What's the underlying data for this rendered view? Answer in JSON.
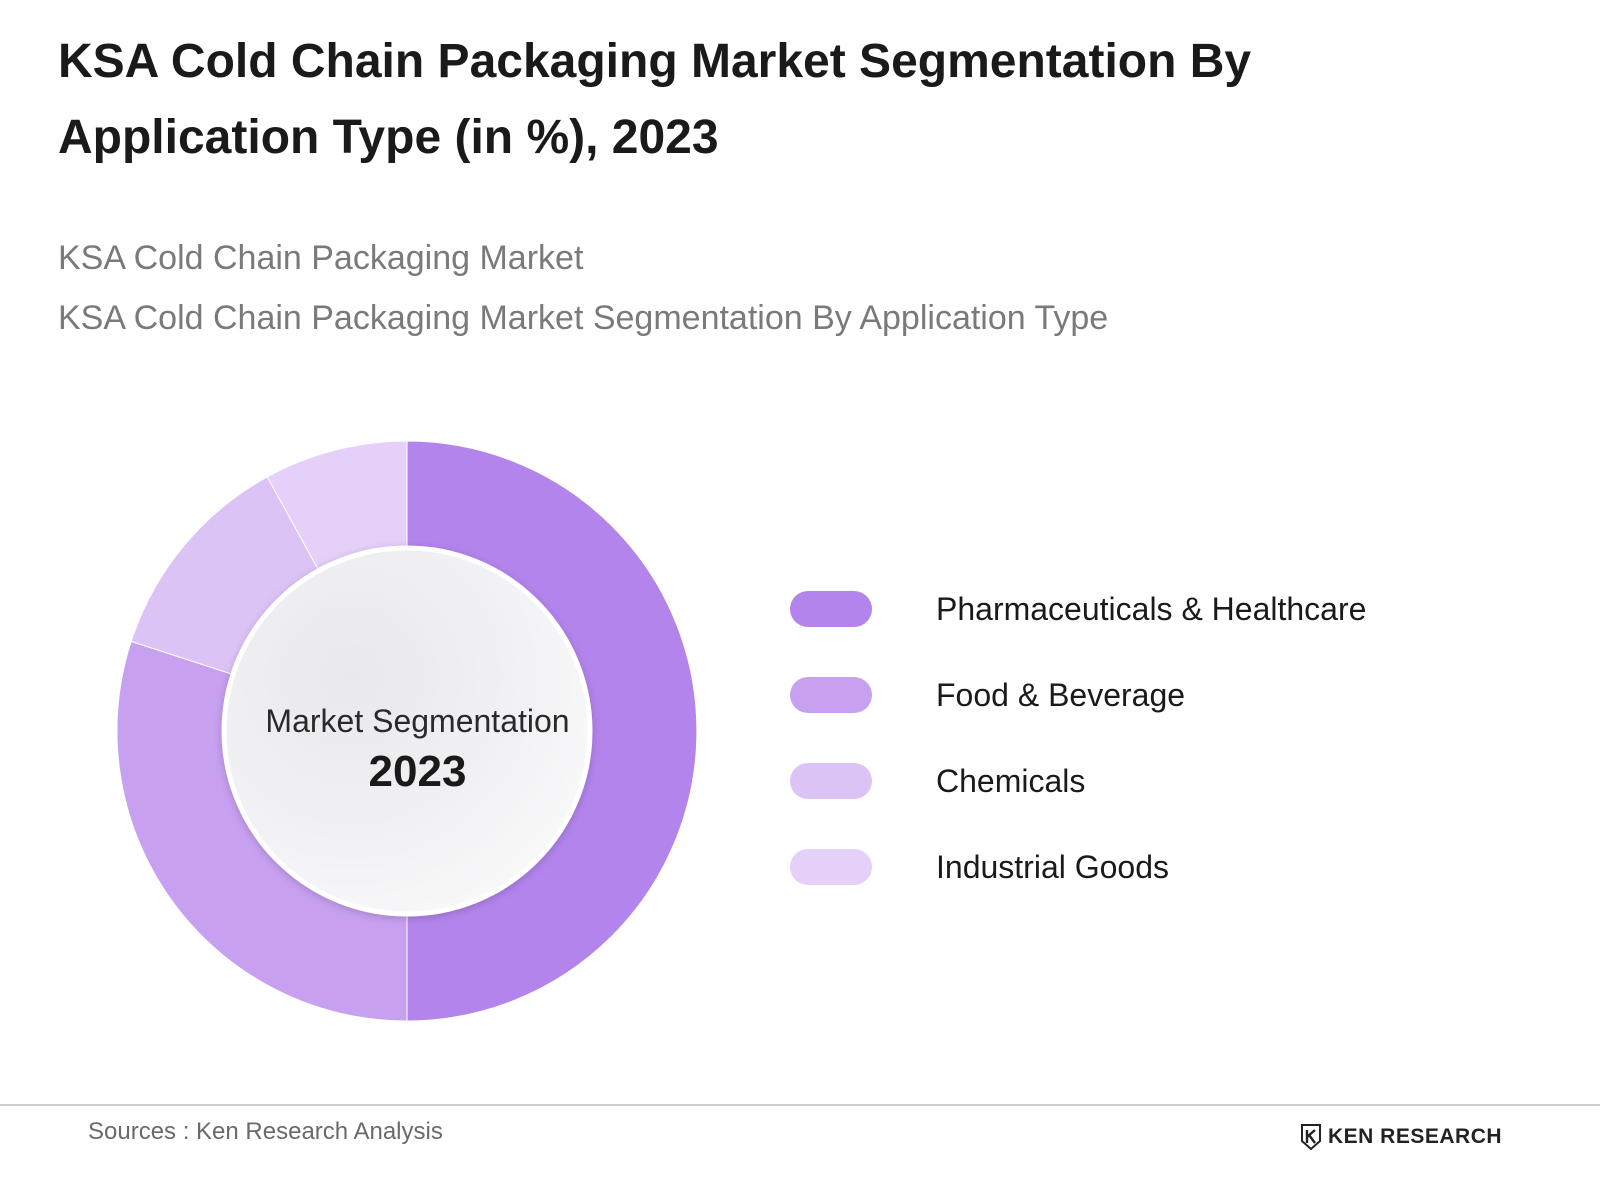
{
  "header": {
    "title": "KSA Cold Chain Packaging Market Segmentation By Application Type (in %), 2023",
    "subtitle_line1": "KSA Cold Chain Packaging Market",
    "subtitle_line2": "KSA Cold Chain Packaging Market Segmentation By Application Type"
  },
  "center": {
    "label": "Market Segmentation",
    "year": "2023"
  },
  "chart_data": {
    "type": "pie",
    "title": "KSA Cold Chain Packaging Market Segmentation By Application Type (in %), 2023",
    "series": [
      {
        "name": "Pharmaceuticals & Healthcare",
        "value": 50,
        "color": "#b384ec"
      },
      {
        "name": "Food & Beverage",
        "value": 30,
        "color": "#c7a0f0"
      },
      {
        "name": "Chemicals",
        "value": 12,
        "color": "#dcc3f6"
      },
      {
        "name": "Industrial Goods",
        "value": 8,
        "color": "#e4d0f8"
      }
    ],
    "legend_position": "right",
    "donut": true
  },
  "footer": {
    "sources": "Sources : Ken Research Analysis",
    "brand": "KEN RESEARCH"
  },
  "logo_icon": "ken-research-k-logo-icon"
}
